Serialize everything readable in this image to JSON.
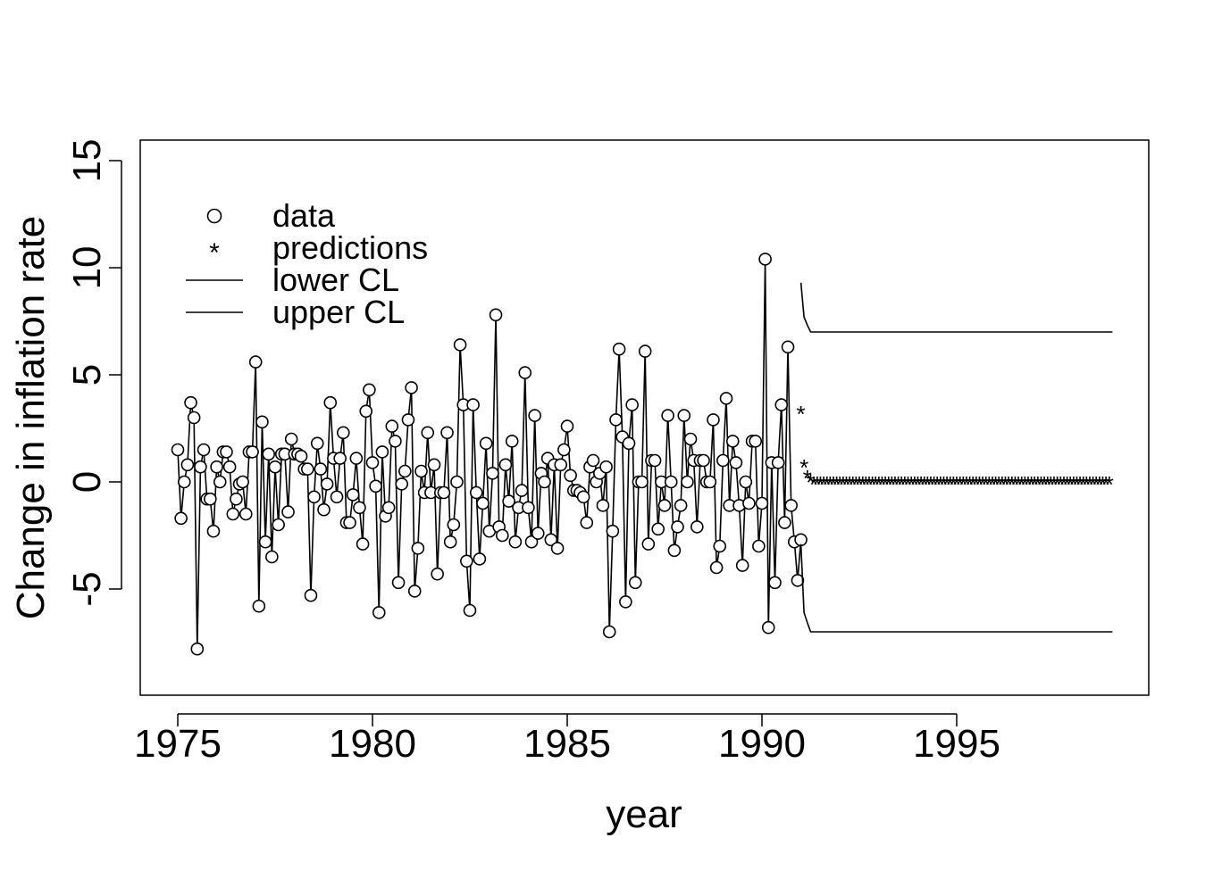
{
  "chart_data": {
    "type": "scatter",
    "xlabel": "year",
    "ylabel": "Change in inflation rate",
    "xlim": [
      1974.8,
      2000.7
    ],
    "ylim": [
      -10,
      16
    ],
    "x_ticks": [
      1975,
      1980,
      1985,
      1990,
      1995
    ],
    "x_tick_labels": [
      "1975",
      "1980",
      "1985",
      "1990",
      "1995"
    ],
    "y_ticks": [
      -5,
      0,
      5,
      10,
      15
    ],
    "y_tick_labels": [
      "-5",
      "0",
      "5",
      "10",
      "15"
    ],
    "grid": false,
    "legend": {
      "position": "top-left",
      "entries": [
        {
          "symbol": "o",
          "label": "data"
        },
        {
          "symbol": "*",
          "label": "predictions"
        },
        {
          "symbol": "line",
          "label": "lower CL"
        },
        {
          "symbol": "line",
          "label": "upper CL"
        }
      ]
    },
    "series": [
      {
        "name": "data",
        "start_year": 1975.0,
        "step": 0.08333,
        "values": [
          1.5,
          -1.7,
          0.0,
          0.8,
          3.7,
          3.0,
          -7.8,
          0.7,
          1.5,
          -0.8,
          -0.8,
          -2.3,
          0.7,
          0.0,
          1.4,
          1.4,
          0.7,
          -1.5,
          -0.8,
          -0.1,
          0.0,
          -1.5,
          1.4,
          1.4,
          5.6,
          -5.8,
          2.8,
          -2.8,
          1.3,
          -3.5,
          0.7,
          -2.0,
          1.3,
          1.3,
          -1.4,
          2.0,
          1.3,
          1.3,
          1.2,
          0.6,
          0.6,
          -5.3,
          -0.7,
          1.8,
          0.6,
          -1.3,
          -0.1,
          3.7,
          1.1,
          -0.7,
          1.1,
          2.3,
          -1.9,
          -1.9,
          -0.6,
          1.1,
          -1.2,
          -2.9,
          3.3,
          4.3,
          0.9,
          -0.2,
          -6.1,
          1.4,
          -1.6,
          -1.2,
          2.6,
          1.9,
          -4.7,
          -0.1,
          0.5,
          2.9,
          4.4,
          -5.1,
          -3.1,
          0.5,
          -0.5,
          2.3,
          -0.5,
          0.8,
          -4.3,
          -0.5,
          -0.5,
          2.3,
          -2.8,
          -2.0,
          0.0,
          6.4,
          3.6,
          -3.7,
          -6.0,
          3.6,
          -0.5,
          -3.6,
          -1.0,
          1.8,
          -2.3,
          0.4,
          7.8,
          -2.1,
          -2.5,
          0.8,
          -0.9,
          1.9,
          -2.8,
          -1.2,
          -0.4,
          5.1,
          -1.2,
          -2.8,
          3.1,
          -2.4,
          0.4,
          0.0,
          1.1,
          -2.7,
          0.8,
          -3.1,
          0.8,
          1.5,
          2.6,
          0.3,
          -0.4,
          -0.4,
          -0.5,
          -0.7,
          -1.9,
          0.7,
          1.0,
          0.0,
          0.4,
          -1.1,
          0.7,
          -7.0,
          -2.3,
          2.9,
          6.2,
          2.1,
          -5.6,
          1.8,
          3.6,
          -4.7,
          0.0,
          0.0,
          6.1,
          -2.9,
          1.0,
          1.0,
          -2.2,
          0.0,
          -1.1,
          3.1,
          0.0,
          -3.2,
          -2.1,
          -1.1,
          3.1,
          0.0,
          2.0,
          1.0,
          -2.1,
          1.0,
          1.0,
          0.0,
          0.0,
          2.9,
          -4.0,
          -3.0,
          1.0,
          3.9,
          -1.1,
          1.9,
          0.9,
          -1.1,
          -3.9,
          0.0,
          -1.0,
          1.9,
          1.9,
          -3.0,
          -1.0,
          10.4,
          -6.8,
          0.9,
          -4.7,
          0.9,
          3.6,
          -1.9,
          6.3,
          -1.1,
          -2.8,
          -4.6,
          -2.7
        ]
      },
      {
        "name": "predictions",
        "start_year": 1991.0,
        "step": 0.08333,
        "values": [
          3.3,
          0.8,
          0.3,
          0.1,
          0.0,
          0.0,
          0.0,
          0.0,
          0.0,
          0.0,
          0.0,
          0.0,
          0.0,
          0.0,
          0.0,
          0.0,
          0.0,
          0.0,
          0.0,
          0.0,
          0.0,
          0.0,
          0.0,
          0.0,
          0.0,
          0.0,
          0.0,
          0.0,
          0.0,
          0.0,
          0.0,
          0.0,
          0.0,
          0.0,
          0.0,
          0.0,
          0.0,
          0.0,
          0.0,
          0.0,
          0.0,
          0.0,
          0.0,
          0.0,
          0.0,
          0.0,
          0.0,
          0.0,
          0.0,
          0.0,
          0.0,
          0.0,
          0.0,
          0.0,
          0.0,
          0.0,
          0.0,
          0.0,
          0.0,
          0.0,
          0.0,
          0.0,
          0.0,
          0.0,
          0.0,
          0.0,
          0.0,
          0.0,
          0.0,
          0.0,
          0.0,
          0.0,
          0.0,
          0.0,
          0.0,
          0.0,
          0.0,
          0.0,
          0.0,
          0.0,
          0.0,
          0.0,
          0.0,
          0.0,
          0.0,
          0.0,
          0.0,
          0.0,
          0.0,
          0.0,
          0.0,
          0.0,
          0.0,
          0.0,
          0.0,
          0.0
        ]
      },
      {
        "name": "lower CL",
        "x": [
          1991.0,
          1991.08,
          1991.17,
          1991.25,
          1999.0
        ],
        "values": [
          -2.9,
          -6.1,
          -6.6,
          -7.0,
          -7.0
        ]
      },
      {
        "name": "upper CL",
        "x": [
          1991.0,
          1991.08,
          1991.17,
          1991.25,
          1999.0
        ],
        "values": [
          9.3,
          7.7,
          7.3,
          7.0,
          7.0
        ]
      }
    ]
  }
}
